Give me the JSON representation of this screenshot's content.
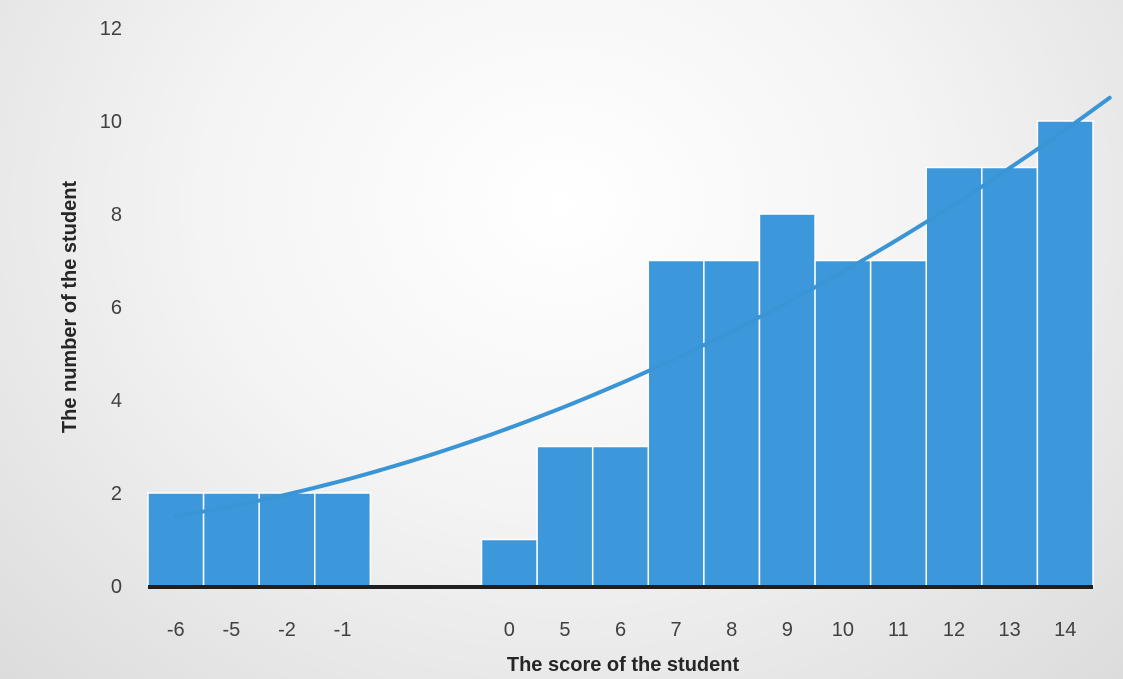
{
  "chart_data": {
    "type": "bar",
    "categories": [
      "-6",
      "-5",
      "-2",
      "-1",
      "",
      "",
      "0",
      "5",
      "6",
      "7",
      "8",
      "9",
      "10",
      "11",
      "12",
      "13",
      "14"
    ],
    "values": [
      2,
      2,
      2,
      2,
      0,
      0,
      1,
      3,
      3,
      7,
      7,
      8,
      7,
      7,
      9,
      9,
      10
    ],
    "trendline": {
      "type": "polynomial",
      "x_start": 0.5,
      "x_end": 17.3,
      "values_at_start_end": [
        1.5,
        10.5
      ]
    },
    "xlabel": "The score of the student",
    "ylabel": "The number of the student",
    "ylim": [
      0,
      12
    ],
    "yticks": [
      0,
      2,
      4,
      6,
      8,
      10,
      12
    ],
    "grid": false,
    "legend": "none",
    "colors": {
      "bar": "#3d97db",
      "bar_edge": "#ffffff",
      "trendline": "#3a95d6",
      "baseline": "#1f1f1f"
    }
  }
}
